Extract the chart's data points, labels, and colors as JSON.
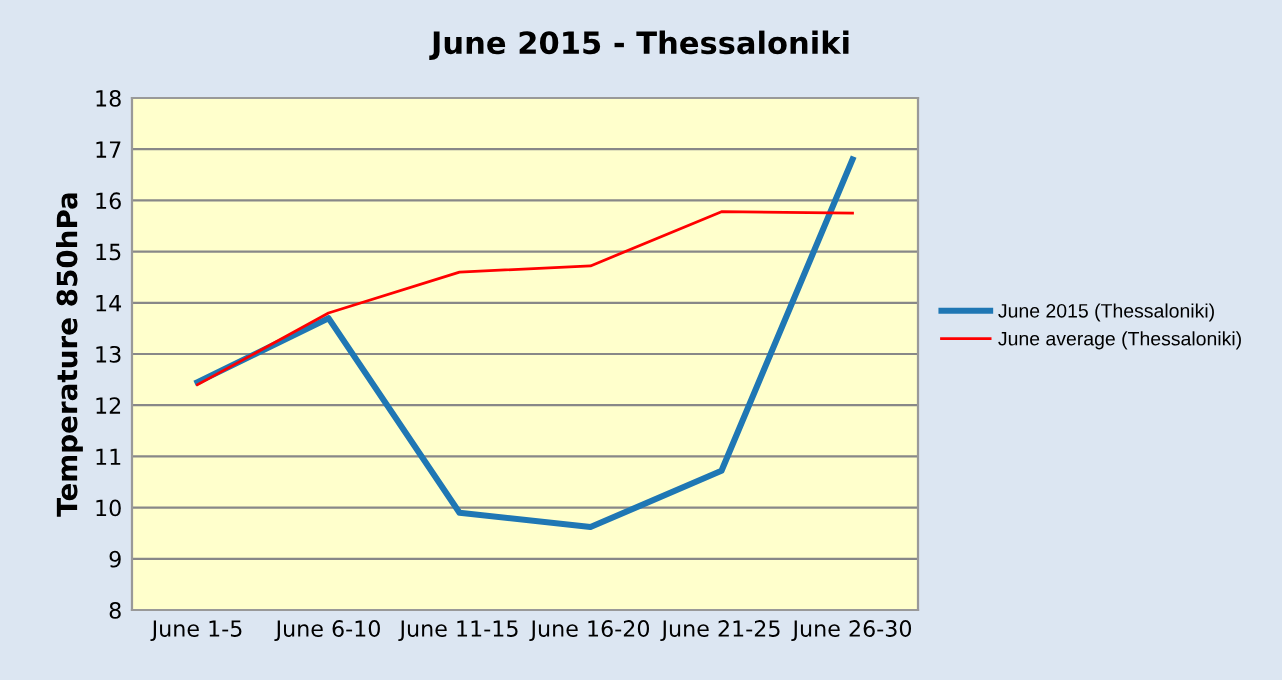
{
  "chart_data": {
    "type": "line",
    "title": "June 2015 - Thessaloniki",
    "ylabel": "Temperature 850hPa",
    "categories": [
      "June 1-5",
      "June 6-10",
      "June 11-15",
      "June 16-20",
      "June 21-25",
      "June 26-30"
    ],
    "series": [
      {
        "name": "June 2015 (Thessaloniki)",
        "color": "#1f77b4",
        "values": [
          12.45,
          13.7,
          9.9,
          9.62,
          10.72,
          16.8
        ]
      },
      {
        "name": "June average (Thessaloniki)",
        "color": "#ff0000",
        "values": [
          12.4,
          13.8,
          14.6,
          14.72,
          15.78,
          15.75
        ]
      }
    ],
    "ylim": [
      8,
      18
    ],
    "yticks": [
      8,
      9,
      10,
      11,
      12,
      13,
      14,
      15,
      16,
      17,
      18
    ],
    "grid": "y",
    "legend": "right",
    "marker": "none",
    "line_style": "solid"
  }
}
